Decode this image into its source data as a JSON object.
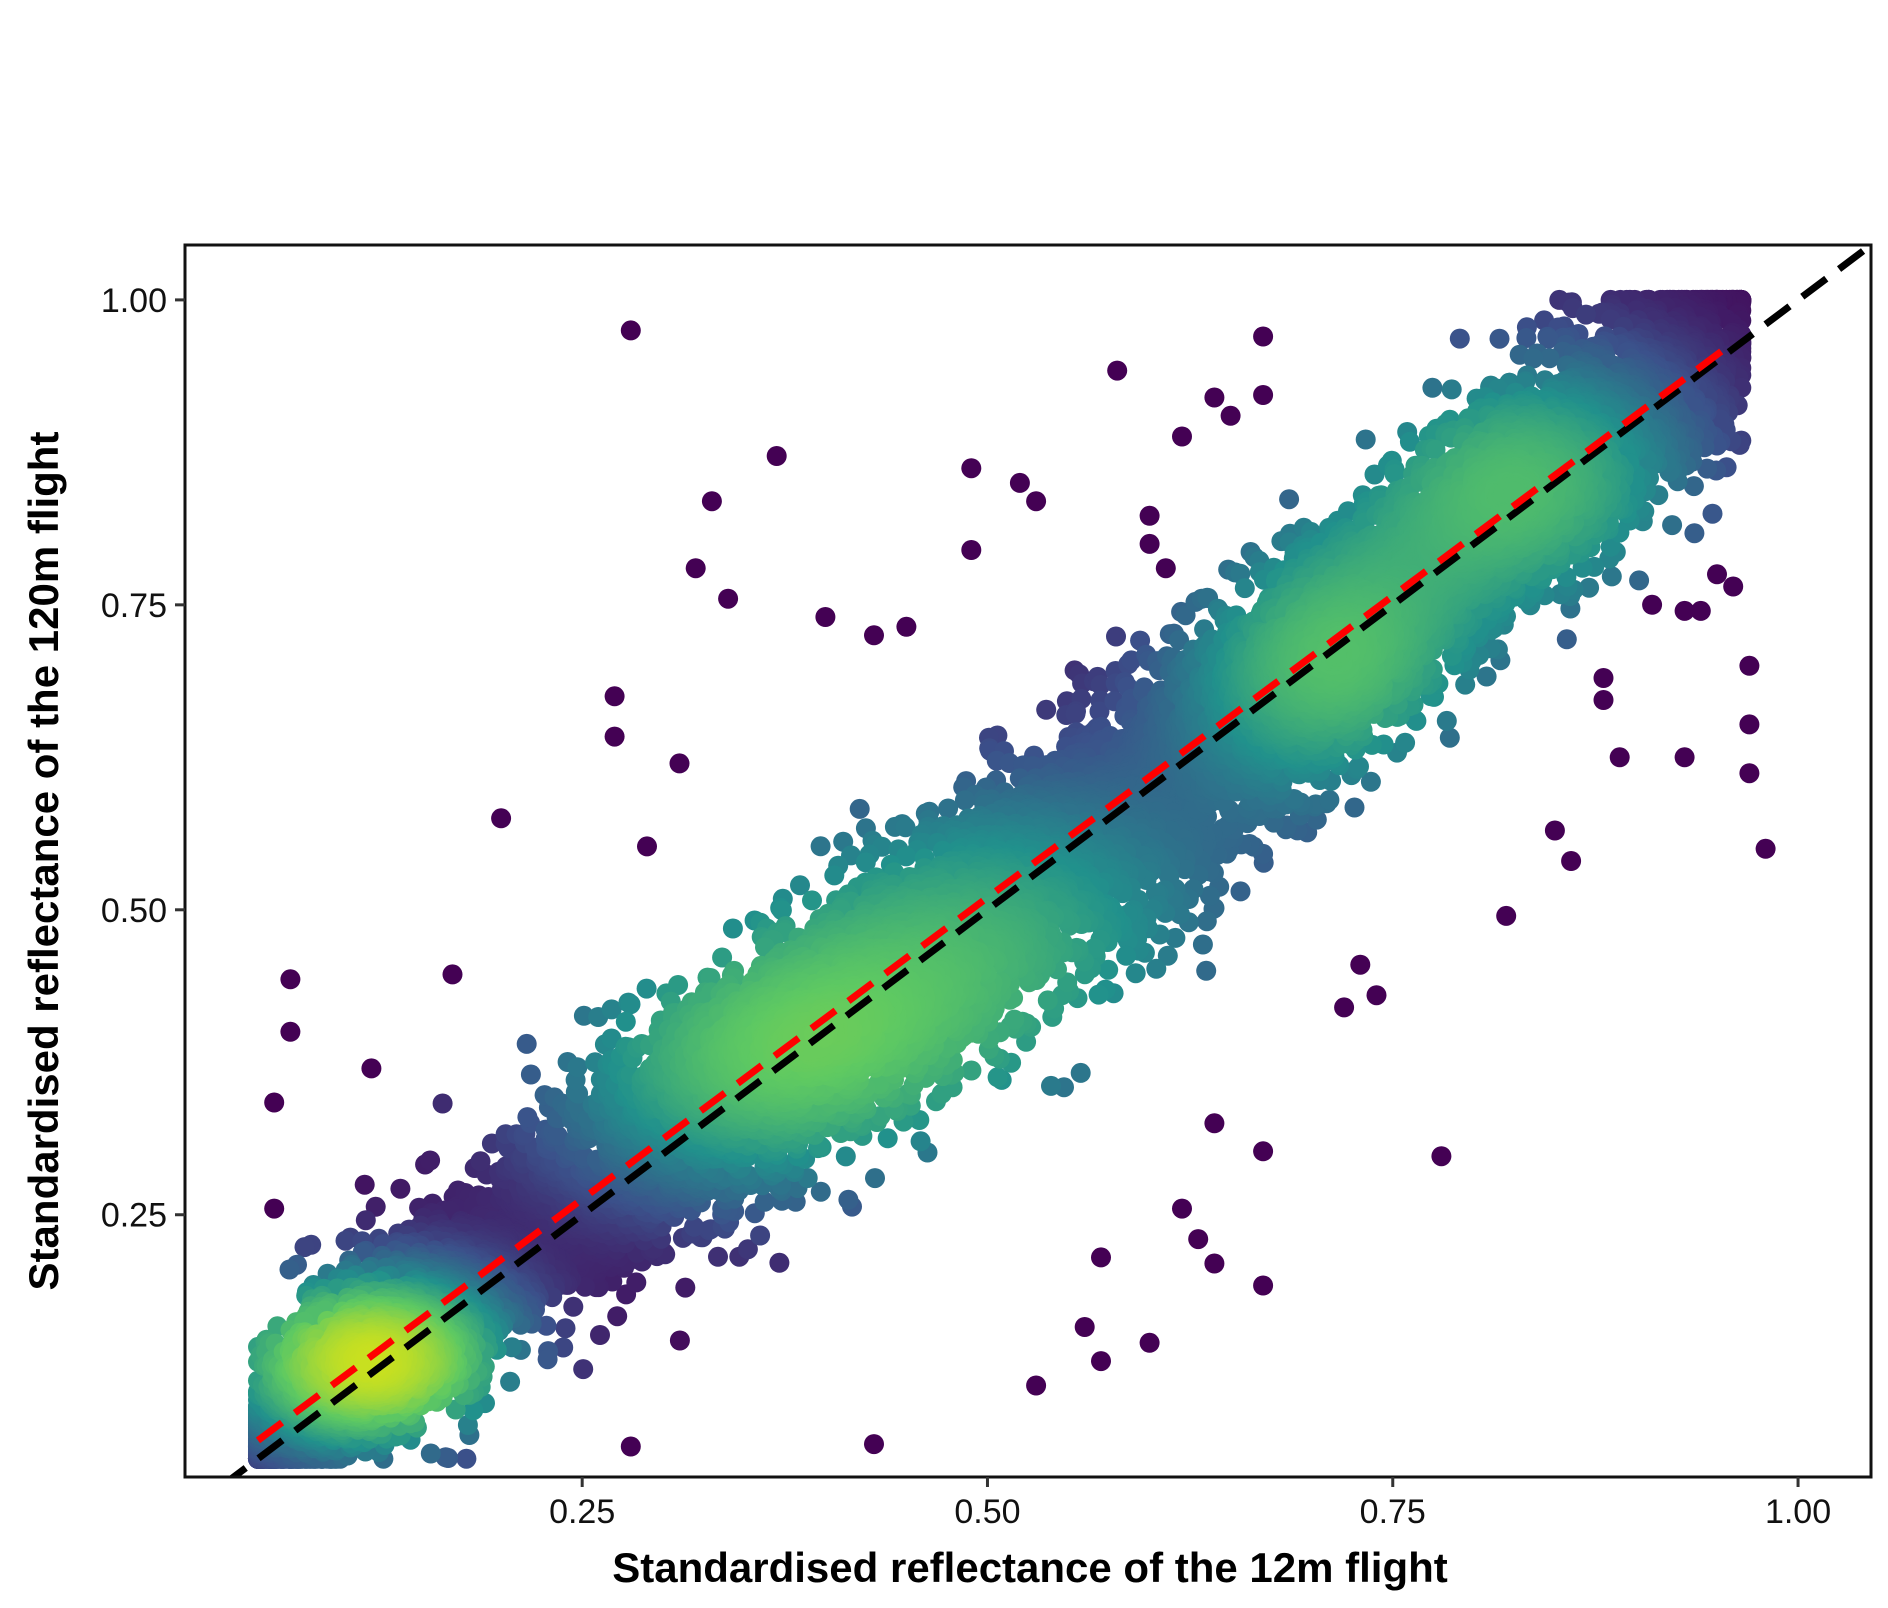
{
  "chart_data": {
    "type": "scatter",
    "title": "",
    "xlabel": "Standardised reflectance of the 12m flight",
    "ylabel": "Standardised reflectance of the 120m flight",
    "xlim": [
      0.005,
      1.045
    ],
    "ylim": [
      0.035,
      1.045
    ],
    "x_ticks": [
      0.25,
      0.5,
      0.75,
      1.0
    ],
    "x_tick_labels": [
      "0.25",
      "0.50",
      "0.75",
      "1.00"
    ],
    "y_ticks": [
      0.25,
      0.5,
      0.75,
      1.0
    ],
    "y_tick_labels": [
      "0.25",
      "0.50",
      "0.75",
      "1.00"
    ],
    "grid": false,
    "legend": "none",
    "color_scale": "viridis (point density)",
    "colors": {
      "low_density": "#440154",
      "mid_density": "#31688e",
      "high_density": "#35b779",
      "peak_density": "#c8e020",
      "identity_line": "#000000",
      "fit_line": "#ff0000"
    },
    "reference_lines": [
      {
        "name": "1:1 line",
        "style": "dashed",
        "color": "#000000",
        "x": [
          0.005,
          1.045
        ],
        "y": [
          0.005,
          1.045
        ]
      },
      {
        "name": "fitted regression",
        "style": "dashed",
        "color": "#ff0000",
        "x": [
          0.05,
          0.96
        ],
        "y": [
          0.065,
          0.965
        ]
      }
    ],
    "density_clusters": [
      {
        "x": 0.12,
        "y": 0.13,
        "spread_x": 0.06,
        "spread_y": 0.05,
        "weight": 1.0
      },
      {
        "x": 0.36,
        "y": 0.37,
        "spread_x": 0.1,
        "spread_y": 0.08,
        "weight": 0.55
      },
      {
        "x": 0.5,
        "y": 0.48,
        "spread_x": 0.12,
        "spread_y": 0.1,
        "weight": 0.5
      },
      {
        "x": 0.71,
        "y": 0.7,
        "spread_x": 0.07,
        "spread_y": 0.08,
        "weight": 0.6
      },
      {
        "x": 0.83,
        "y": 0.85,
        "spread_x": 0.08,
        "spread_y": 0.08,
        "weight": 0.6
      }
    ],
    "outliers": [
      {
        "x": 0.28,
        "y": 0.975
      },
      {
        "x": 0.37,
        "y": 0.872
      },
      {
        "x": 0.33,
        "y": 0.835
      },
      {
        "x": 0.32,
        "y": 0.78
      },
      {
        "x": 0.34,
        "y": 0.755
      },
      {
        "x": 0.4,
        "y": 0.74
      },
      {
        "x": 0.43,
        "y": 0.725
      },
      {
        "x": 0.45,
        "y": 0.732
      },
      {
        "x": 0.58,
        "y": 0.942
      },
      {
        "x": 0.49,
        "y": 0.862
      },
      {
        "x": 0.52,
        "y": 0.85
      },
      {
        "x": 0.53,
        "y": 0.835
      },
      {
        "x": 0.49,
        "y": 0.795
      },
      {
        "x": 0.2,
        "y": 0.575
      },
      {
        "x": 0.27,
        "y": 0.675
      },
      {
        "x": 0.27,
        "y": 0.642
      },
      {
        "x": 0.31,
        "y": 0.62
      },
      {
        "x": 0.29,
        "y": 0.552
      },
      {
        "x": 0.07,
        "y": 0.443
      },
      {
        "x": 0.07,
        "y": 0.4
      },
      {
        "x": 0.06,
        "y": 0.342
      },
      {
        "x": 0.17,
        "y": 0.447
      },
      {
        "x": 0.12,
        "y": 0.37
      },
      {
        "x": 0.06,
        "y": 0.255
      },
      {
        "x": 0.28,
        "y": 0.06
      },
      {
        "x": 0.43,
        "y": 0.062
      },
      {
        "x": 0.53,
        "y": 0.11
      },
      {
        "x": 0.57,
        "y": 0.13
      },
      {
        "x": 0.56,
        "y": 0.158
      },
      {
        "x": 0.6,
        "y": 0.145
      },
      {
        "x": 0.67,
        "y": 0.192
      },
      {
        "x": 0.67,
        "y": 0.302
      },
      {
        "x": 0.64,
        "y": 0.325
      },
      {
        "x": 0.78,
        "y": 0.298
      },
      {
        "x": 0.62,
        "y": 0.255
      },
      {
        "x": 0.63,
        "y": 0.23
      },
      {
        "x": 0.64,
        "y": 0.21
      },
      {
        "x": 0.57,
        "y": 0.215
      },
      {
        "x": 0.86,
        "y": 0.54
      },
      {
        "x": 0.82,
        "y": 0.495
      },
      {
        "x": 0.85,
        "y": 0.565
      },
      {
        "x": 0.93,
        "y": 0.625
      },
      {
        "x": 0.89,
        "y": 0.625
      },
      {
        "x": 0.97,
        "y": 0.7
      },
      {
        "x": 0.97,
        "y": 0.652
      },
      {
        "x": 0.97,
        "y": 0.612
      },
      {
        "x": 0.98,
        "y": 0.55
      },
      {
        "x": 0.88,
        "y": 0.69
      },
      {
        "x": 0.88,
        "y": 0.672
      },
      {
        "x": 0.73,
        "y": 0.455
      },
      {
        "x": 0.72,
        "y": 0.42
      },
      {
        "x": 0.74,
        "y": 0.43
      },
      {
        "x": 0.95,
        "y": 0.775
      },
      {
        "x": 0.96,
        "y": 0.765
      },
      {
        "x": 0.93,
        "y": 0.745
      },
      {
        "x": 0.94,
        "y": 0.745
      },
      {
        "x": 0.91,
        "y": 0.75
      },
      {
        "x": 0.67,
        "y": 0.97
      },
      {
        "x": 0.67,
        "y": 0.922
      },
      {
        "x": 0.64,
        "y": 0.92
      },
      {
        "x": 0.65,
        "y": 0.905
      },
      {
        "x": 0.62,
        "y": 0.888
      },
      {
        "x": 0.6,
        "y": 0.823
      },
      {
        "x": 0.6,
        "y": 0.8
      },
      {
        "x": 0.61,
        "y": 0.78
      }
    ]
  }
}
